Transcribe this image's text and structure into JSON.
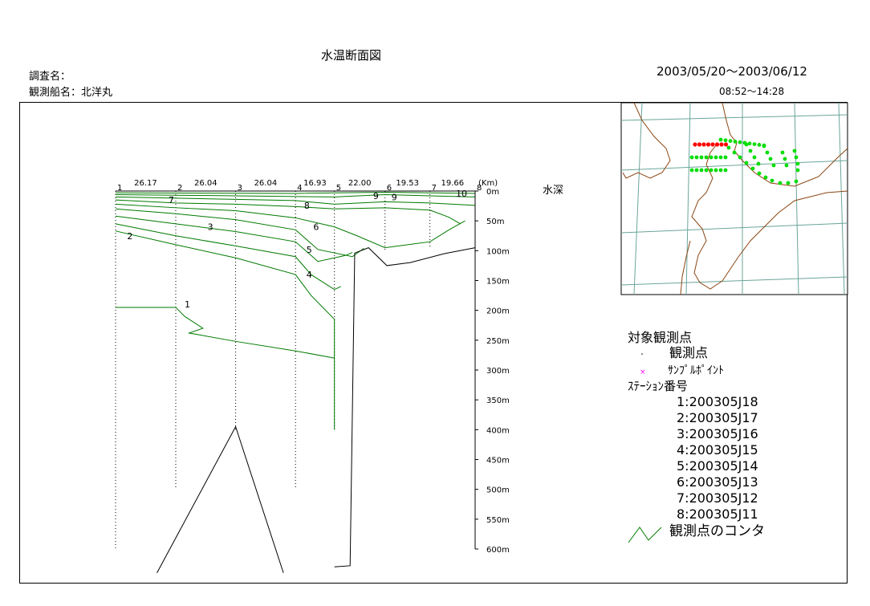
{
  "header": {
    "title": "水温断面図",
    "survey_label": "調査名：",
    "vessel_label": "観測船名：北洋丸",
    "date_range": "2003/05/20〜2003/06/12",
    "time_range": "08:52〜14:28"
  },
  "chart_data": {
    "type": "line",
    "title": "水温断面図",
    "ylabel": "水深",
    "ylim": [
      0,
      600
    ],
    "y_unit": "m",
    "y_ticks": [
      "0m",
      "50m",
      "100m",
      "150m",
      "200m",
      "250m",
      "300m",
      "350m",
      "400m",
      "450m",
      "500m",
      "550m",
      "600m"
    ],
    "stations": [
      {
        "label": "1",
        "x_km": 0
      },
      {
        "label": "2",
        "x_km": 26.17
      },
      {
        "label": "3",
        "x_km": 52.21
      },
      {
        "label": "4",
        "x_km": 78.25
      },
      {
        "label": "5",
        "x_km": 95.18
      },
      {
        "label": "6",
        "x_km": 117.18
      },
      {
        "label": "7",
        "x_km": 136.71
      },
      {
        "label": "8",
        "x_km": 156.37
      }
    ],
    "station_order_labels": [
      "1",
      "2",
      "3",
      "4",
      "5",
      "6",
      "7",
      "8"
    ],
    "segment_distances": [
      "26.17",
      "26.04",
      "26.04",
      "16.93",
      "22.00",
      "19.53",
      "19.66"
    ],
    "x_unit_label": "(Km)",
    "contour_labels": [
      "1",
      "2",
      "3",
      "4",
      "5",
      "6",
      "7",
      "8",
      "9",
      "9",
      "10"
    ],
    "contours": [
      {
        "level": "1",
        "points": [
          [
            0,
            195
          ],
          [
            26.17,
            195
          ],
          [
            30,
            210
          ],
          [
            38,
            230
          ],
          [
            32,
            238
          ],
          [
            52.21,
            252
          ],
          [
            78.25,
            268
          ],
          [
            95.18,
            280
          ]
        ]
      },
      {
        "level": "2",
        "points": [
          [
            0,
            67
          ],
          [
            26.17,
            90
          ],
          [
            52.21,
            112
          ],
          [
            78.25,
            140
          ],
          [
            85,
            175
          ],
          [
            95.18,
            215
          ],
          [
            95.18,
            400
          ]
        ]
      },
      {
        "level": "3",
        "points": [
          [
            0,
            55
          ],
          [
            26.17,
            75
          ],
          [
            52.21,
            92
          ],
          [
            78.25,
            110
          ],
          [
            85,
            140
          ],
          [
            95.18,
            165
          ],
          [
            98,
            160
          ]
        ]
      },
      {
        "level": "4",
        "points": [
          [
            0,
            42
          ],
          [
            26.17,
            55
          ],
          [
            52.21,
            68
          ],
          [
            78.25,
            85
          ],
          [
            88,
            118
          ],
          [
            100,
            108
          ],
          [
            103,
            103
          ]
        ]
      },
      {
        "level": "5",
        "points": [
          [
            0,
            30
          ],
          [
            26.17,
            38
          ],
          [
            52.21,
            48
          ],
          [
            78.25,
            65
          ],
          [
            88,
            98
          ],
          [
            103,
            110
          ],
          [
            108,
            96
          ]
        ]
      },
      {
        "level": "6",
        "points": [
          [
            0,
            22
          ],
          [
            26.17,
            28
          ],
          [
            52.21,
            33
          ],
          [
            78.25,
            45
          ],
          [
            95.18,
            60
          ],
          [
            105,
            75
          ],
          [
            117.18,
            95
          ],
          [
            136.71,
            85
          ],
          [
            145,
            65
          ],
          [
            152,
            50
          ]
        ]
      },
      {
        "level": "7",
        "points": [
          [
            0,
            15
          ],
          [
            26.17,
            20
          ],
          [
            52.21,
            22
          ],
          [
            78.25,
            26
          ],
          [
            95.18,
            30
          ],
          [
            117.18,
            28
          ],
          [
            136.71,
            32
          ],
          [
            145,
            44
          ],
          [
            150,
            55
          ]
        ]
      },
      {
        "level": "8",
        "points": [
          [
            0,
            10
          ],
          [
            26.17,
            12
          ],
          [
            52.21,
            14
          ],
          [
            78.25,
            16
          ],
          [
            95.18,
            22
          ],
          [
            117.18,
            18
          ],
          [
            136.71,
            20
          ],
          [
            156.37,
            24
          ]
        ]
      },
      {
        "level": "9",
        "points": [
          [
            0,
            6
          ],
          [
            52.21,
            8
          ],
          [
            95.18,
            10
          ],
          [
            117.18,
            6
          ],
          [
            136.71,
            8
          ],
          [
            156.37,
            10
          ]
        ]
      },
      {
        "level": "10",
        "points": [
          [
            0,
            3
          ],
          [
            78.25,
            4
          ],
          [
            117.18,
            2
          ],
          [
            156.37,
            4
          ]
        ]
      }
    ],
    "seafloor": [
      [
        95.18,
        630
      ],
      [
        102,
        628
      ],
      [
        104,
        104
      ],
      [
        110,
        95
      ],
      [
        118,
        125
      ],
      [
        128,
        120
      ],
      [
        143,
        105
      ],
      [
        156.37,
        95
      ]
    ],
    "seamount": [
      [
        18,
        640
      ],
      [
        52.21,
        395
      ],
      [
        73,
        640
      ]
    ],
    "legend": {
      "title": "対象観測点",
      "obs_point": "観測点",
      "sample_point": "ｻﾝﾌﾟﾙﾎﾟｲﾝﾄ",
      "station_title": "ｽﾃｰｼｮﾝ番号",
      "station_entries": [
        "1:200305J18",
        "2:200305J17",
        "3:200305J16",
        "4:200305J15",
        "5:200305J14",
        "6:200305J13",
        "7:200305J12",
        "8:200305J11"
      ],
      "contour_entry": "観測点のコンタ"
    },
    "colors": {
      "contour": "#007a00",
      "frame": "#000000",
      "sample_marker": "#ff00ff",
      "map_land": "#8b4513",
      "map_grid": "#6aa59a",
      "map_red": "#ff0000",
      "map_green": "#00dd00"
    }
  }
}
